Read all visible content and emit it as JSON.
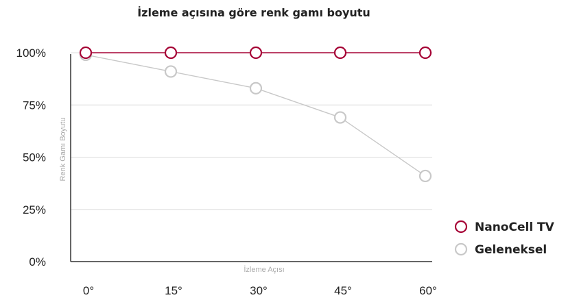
{
  "chart_data": {
    "type": "line",
    "title": "İzleme açısına göre renk gamı boyutu",
    "xlabel": "İzleme Açısı",
    "ylabel": "Renk Gamı Boyutu",
    "categories": [
      "0°",
      "15°",
      "30°",
      "45°",
      "60°"
    ],
    "y_ticks": [
      "0%",
      "25%",
      "50%",
      "75%",
      "100%"
    ],
    "ylim": [
      0,
      100
    ],
    "grid": true,
    "legend_position": "right",
    "series": [
      {
        "name": "NanoCell TV",
        "color": "#a50034",
        "values": [
          100,
          100,
          100,
          100,
          100
        ]
      },
      {
        "name": "Geleneksel",
        "color": "#c8c8c8",
        "values": [
          99,
          91,
          83,
          69,
          41
        ]
      }
    ]
  }
}
